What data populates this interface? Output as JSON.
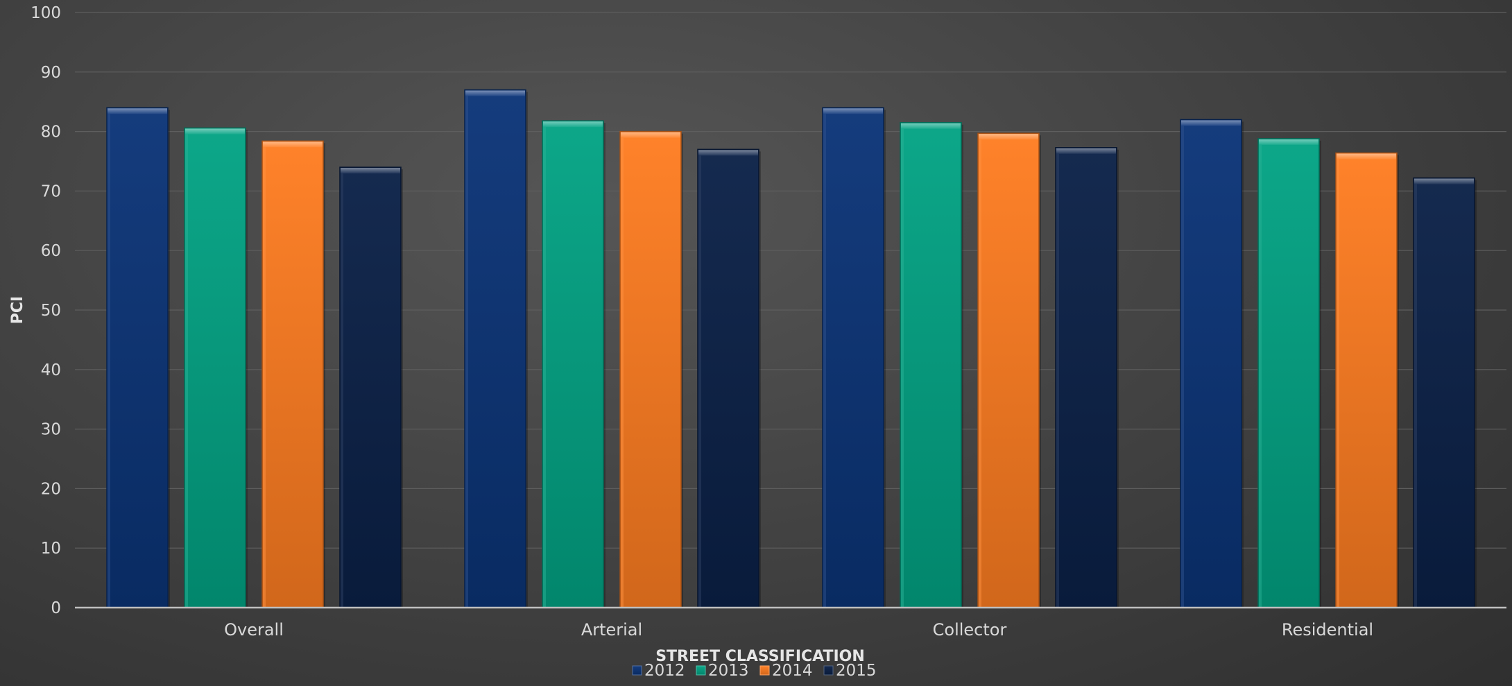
{
  "chart_data": {
    "type": "bar",
    "xlabel": "STREET CLASSIFICATION",
    "ylabel": "PCI",
    "ylim": [
      0,
      100
    ],
    "yticks": [
      0,
      10,
      20,
      30,
      40,
      50,
      60,
      70,
      80,
      90,
      100
    ],
    "categories": [
      "Overall",
      "Arterial",
      "Collector",
      "Residential"
    ],
    "series": [
      {
        "name": "2012",
        "color": "#0b3478",
        "values": [
          84,
          87,
          84,
          82
        ]
      },
      {
        "name": "2013",
        "color": "#03a384",
        "values": [
          80.6,
          81.8,
          81.5,
          78.8
        ]
      },
      {
        "name": "2014",
        "color": "#ff7d21",
        "values": [
          78.4,
          80,
          79.7,
          76.4
        ]
      },
      {
        "name": "2015",
        "color": "#0b2148",
        "values": [
          74,
          77,
          77.3,
          72.2
        ]
      }
    ],
    "grid": true,
    "legend_position": "bottom"
  }
}
